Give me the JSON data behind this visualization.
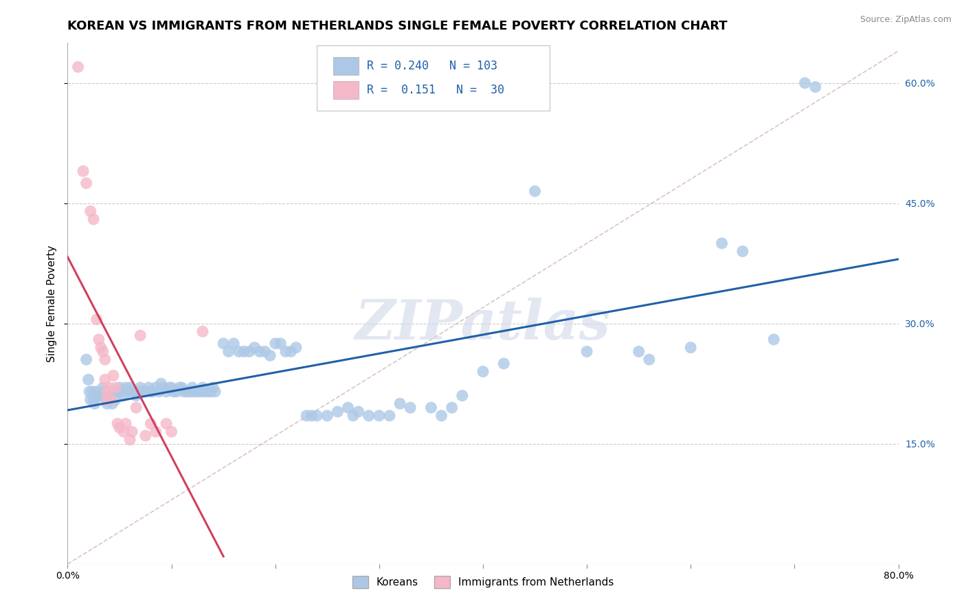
{
  "title": "KOREAN VS IMMIGRANTS FROM NETHERLANDS SINGLE FEMALE POVERTY CORRELATION CHART",
  "source": "Source: ZipAtlas.com",
  "ylabel": "Single Female Poverty",
  "watermark": "ZIPatlas",
  "xlim": [
    0.0,
    0.8
  ],
  "ylim": [
    0.0,
    0.65
  ],
  "ytick_positions": [
    0.15,
    0.3,
    0.45,
    0.6
  ],
  "yticklabels": [
    "15.0%",
    "30.0%",
    "45.0%",
    "60.0%"
  ],
  "blue_R": 0.24,
  "blue_N": 103,
  "pink_R": 0.151,
  "pink_N": 30,
  "blue_color": "#adc8e6",
  "pink_color": "#f5b8c8",
  "blue_line_color": "#2060a8",
  "pink_line_color": "#d04060",
  "blue_scatter": [
    [
      0.018,
      0.255
    ],
    [
      0.02,
      0.23
    ],
    [
      0.021,
      0.215
    ],
    [
      0.022,
      0.205
    ],
    [
      0.024,
      0.215
    ],
    [
      0.025,
      0.205
    ],
    [
      0.026,
      0.2
    ],
    [
      0.028,
      0.215
    ],
    [
      0.03,
      0.21
    ],
    [
      0.032,
      0.21
    ],
    [
      0.034,
      0.22
    ],
    [
      0.036,
      0.215
    ],
    [
      0.037,
      0.205
    ],
    [
      0.038,
      0.2
    ],
    [
      0.04,
      0.215
    ],
    [
      0.042,
      0.205
    ],
    [
      0.043,
      0.2
    ],
    [
      0.045,
      0.215
    ],
    [
      0.046,
      0.205
    ],
    [
      0.048,
      0.215
    ],
    [
      0.05,
      0.22
    ],
    [
      0.052,
      0.215
    ],
    [
      0.054,
      0.21
    ],
    [
      0.056,
      0.22
    ],
    [
      0.058,
      0.215
    ],
    [
      0.06,
      0.22
    ],
    [
      0.062,
      0.215
    ],
    [
      0.064,
      0.215
    ],
    [
      0.066,
      0.21
    ],
    [
      0.068,
      0.215
    ],
    [
      0.07,
      0.22
    ],
    [
      0.072,
      0.215
    ],
    [
      0.075,
      0.215
    ],
    [
      0.078,
      0.22
    ],
    [
      0.08,
      0.215
    ],
    [
      0.082,
      0.215
    ],
    [
      0.085,
      0.22
    ],
    [
      0.088,
      0.215
    ],
    [
      0.09,
      0.225
    ],
    [
      0.092,
      0.22
    ],
    [
      0.095,
      0.215
    ],
    [
      0.098,
      0.22
    ],
    [
      0.1,
      0.22
    ],
    [
      0.102,
      0.215
    ],
    [
      0.105,
      0.215
    ],
    [
      0.108,
      0.22
    ],
    [
      0.11,
      0.22
    ],
    [
      0.112,
      0.215
    ],
    [
      0.115,
      0.215
    ],
    [
      0.118,
      0.215
    ],
    [
      0.12,
      0.22
    ],
    [
      0.122,
      0.215
    ],
    [
      0.125,
      0.215
    ],
    [
      0.128,
      0.215
    ],
    [
      0.13,
      0.22
    ],
    [
      0.132,
      0.215
    ],
    [
      0.135,
      0.215
    ],
    [
      0.138,
      0.215
    ],
    [
      0.14,
      0.22
    ],
    [
      0.142,
      0.215
    ],
    [
      0.15,
      0.275
    ],
    [
      0.155,
      0.265
    ],
    [
      0.16,
      0.275
    ],
    [
      0.165,
      0.265
    ],
    [
      0.17,
      0.265
    ],
    [
      0.175,
      0.265
    ],
    [
      0.18,
      0.27
    ],
    [
      0.185,
      0.265
    ],
    [
      0.19,
      0.265
    ],
    [
      0.195,
      0.26
    ],
    [
      0.2,
      0.275
    ],
    [
      0.205,
      0.275
    ],
    [
      0.21,
      0.265
    ],
    [
      0.215,
      0.265
    ],
    [
      0.22,
      0.27
    ],
    [
      0.23,
      0.185
    ],
    [
      0.235,
      0.185
    ],
    [
      0.24,
      0.185
    ],
    [
      0.25,
      0.185
    ],
    [
      0.26,
      0.19
    ],
    [
      0.27,
      0.195
    ],
    [
      0.275,
      0.185
    ],
    [
      0.28,
      0.19
    ],
    [
      0.29,
      0.185
    ],
    [
      0.3,
      0.185
    ],
    [
      0.31,
      0.185
    ],
    [
      0.32,
      0.2
    ],
    [
      0.33,
      0.195
    ],
    [
      0.35,
      0.195
    ],
    [
      0.36,
      0.185
    ],
    [
      0.37,
      0.195
    ],
    [
      0.38,
      0.21
    ],
    [
      0.4,
      0.24
    ],
    [
      0.42,
      0.25
    ],
    [
      0.45,
      0.465
    ],
    [
      0.5,
      0.265
    ],
    [
      0.55,
      0.265
    ],
    [
      0.56,
      0.255
    ],
    [
      0.6,
      0.27
    ],
    [
      0.63,
      0.4
    ],
    [
      0.65,
      0.39
    ],
    [
      0.68,
      0.28
    ],
    [
      0.71,
      0.6
    ],
    [
      0.72,
      0.595
    ]
  ],
  "pink_scatter": [
    [
      0.01,
      0.62
    ],
    [
      0.015,
      0.49
    ],
    [
      0.018,
      0.475
    ],
    [
      0.022,
      0.44
    ],
    [
      0.025,
      0.43
    ],
    [
      0.028,
      0.305
    ],
    [
      0.03,
      0.28
    ],
    [
      0.032,
      0.27
    ],
    [
      0.034,
      0.265
    ],
    [
      0.036,
      0.255
    ],
    [
      0.036,
      0.23
    ],
    [
      0.038,
      0.215
    ],
    [
      0.038,
      0.205
    ],
    [
      0.04,
      0.22
    ],
    [
      0.042,
      0.205
    ],
    [
      0.044,
      0.235
    ],
    [
      0.046,
      0.22
    ],
    [
      0.048,
      0.175
    ],
    [
      0.05,
      0.17
    ],
    [
      0.054,
      0.165
    ],
    [
      0.056,
      0.175
    ],
    [
      0.06,
      0.155
    ],
    [
      0.062,
      0.165
    ],
    [
      0.066,
      0.195
    ],
    [
      0.07,
      0.285
    ],
    [
      0.075,
      0.16
    ],
    [
      0.08,
      0.175
    ],
    [
      0.085,
      0.165
    ],
    [
      0.095,
      0.175
    ],
    [
      0.1,
      0.165
    ],
    [
      0.13,
      0.29
    ]
  ],
  "legend_labels": [
    "Koreans",
    "Immigrants from Netherlands"
  ],
  "background_color": "#ffffff",
  "grid_color": "#cccccc",
  "title_fontsize": 13,
  "axis_label_fontsize": 11,
  "tick_fontsize": 10,
  "legend_fontsize": 11,
  "pink_line_x": [
    0.0,
    0.15
  ],
  "diag_line_color": "#ccaaaa",
  "diag_line_style": "--"
}
